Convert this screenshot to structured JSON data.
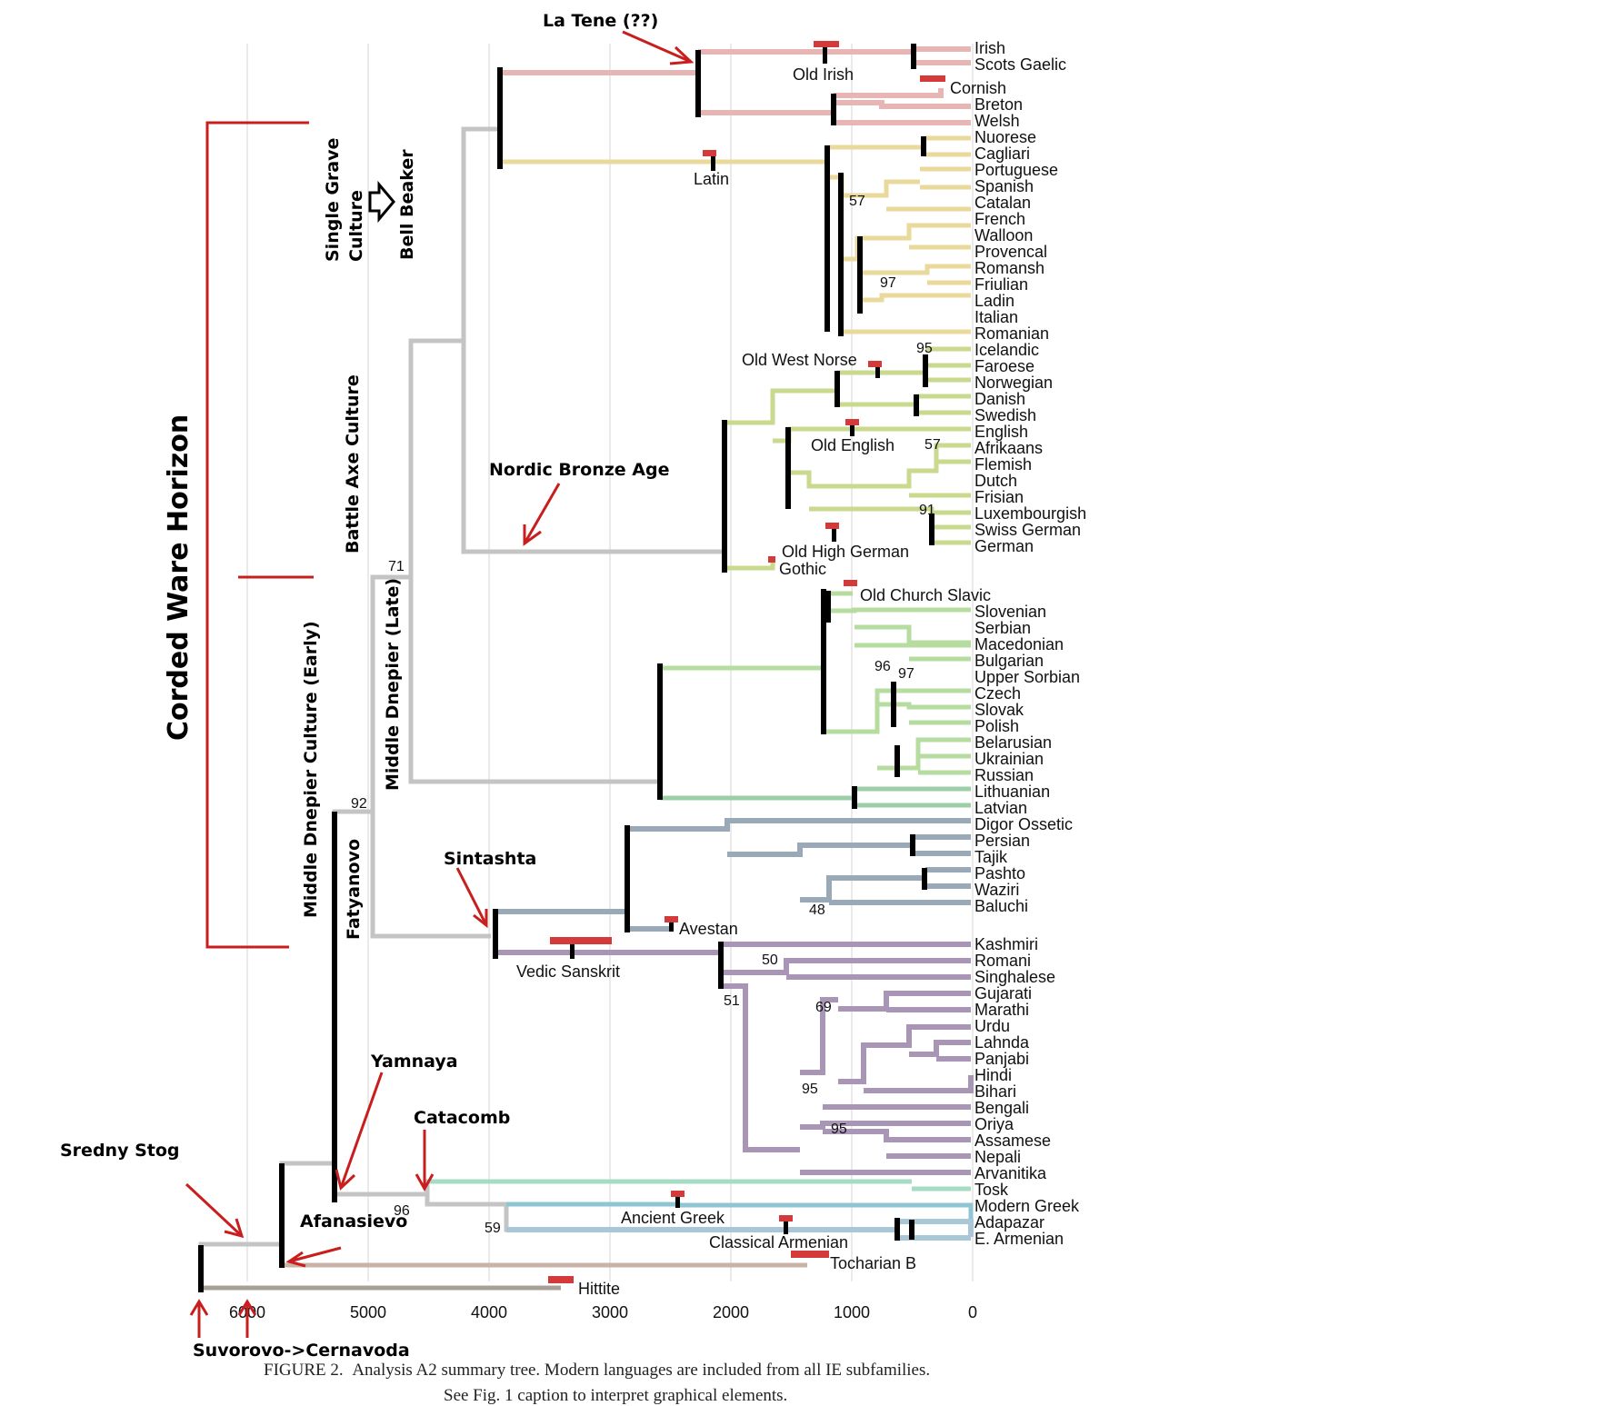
{
  "colors": {
    "celtic": "#e8b5b5",
    "italic": "#e9d99a",
    "germanic": "#c9d98e",
    "slavic": "#b7dca0",
    "baltic": "#9ccfa8",
    "iranian": "#9aa9b8",
    "indic": "#a996b6",
    "albanian": "#a6dcc6",
    "greek": "#8ec7d3",
    "armenian": "#a9c7d6",
    "tocharian": "#c9b3a8",
    "anatolian": "#a8a097",
    "backbone": "#c4c4c4",
    "node": "#000000",
    "sample": "#d43a3a",
    "annotation": "#c81e1e"
  },
  "languages": [
    "Irish",
    "Scots Gaelic",
    "Cornish",
    "Breton",
    "Welsh",
    "Nuorese",
    "Cagliari",
    "Portuguese",
    "Spanish",
    "Catalan",
    "French",
    "Walloon",
    "Provencal",
    "Romansh",
    "Friulian",
    "Ladin",
    "Italian",
    "Romanian",
    "Icelandic",
    "Faroese",
    "Norwegian",
    "Danish",
    "Swedish",
    "English",
    "Afrikaans",
    "Flemish",
    "Dutch",
    "Frisian",
    "Luxembourgish",
    "Swiss German",
    "German",
    "Slovenian",
    "Serbian",
    "Macedonian",
    "Bulgarian",
    "Upper Sorbian",
    "Czech",
    "Slovak",
    "Polish",
    "Belarusian",
    "Ukrainian",
    "Russian",
    "Lithuanian",
    "Latvian",
    "Digor Ossetic",
    "Persian",
    "Tajik",
    "Pashto",
    "Waziri",
    "Baluchi",
    "Kashmiri",
    "Romani",
    "Singhalese",
    "Gujarati",
    "Marathi",
    "Urdu",
    "Lahnda",
    "Panjabi",
    "Hindi",
    "Bihari",
    "Bengali",
    "Oriya",
    "Assamese",
    "Nepali",
    "Arvanitika",
    "Tosk",
    "Modern Greek",
    "Adapazar",
    "E. Armenian"
  ],
  "ancient": [
    "Old Irish",
    "Latin",
    "Old West Norse",
    "Old English",
    "Old High German",
    "Gothic",
    "Old Church Slavic",
    "Avestan",
    "Vedic Sanskrit",
    "Ancient Greek",
    "Classical Armenian",
    "Tocharian B",
    "Hittite"
  ],
  "support": [
    "57",
    "97",
    "95",
    "57",
    "91",
    "71",
    "92",
    "96",
    "97",
    "48",
    "50",
    "51",
    "69",
    "95",
    "95",
    "96",
    "59"
  ],
  "axis_ticks": [
    "6000",
    "5000",
    "4000",
    "3000",
    "2000",
    "1000",
    "0"
  ],
  "cultures": {
    "la_tene": "La Tene (??)",
    "nordic": "Nordic Bronze Age",
    "sintashta": "Sintashta",
    "yamnaya": "Yamnaya",
    "catacomb": "Catacomb",
    "sredny": "Sredny Stog",
    "afanasievo": "Afanasievo",
    "suvorovo": "Suvorovo->Cernavoda",
    "single_grave_1": "Single Grave",
    "single_grave_2": "Culture",
    "bell_beaker": "Bell Beaker",
    "battle_axe": "Battle Axe Culture",
    "mdc_early": "Middle Dnepier Culture (Early)",
    "md_late": "Middle Dnepier (Late)",
    "fatyanovo": "Fatyanovo",
    "horizon": "Corded Ware Horizon"
  },
  "caption": {
    "line1_label": "FIGURE 2.",
    "line1_text": "Analysis A2 summary tree. Modern languages are included from all IE subfamilies.",
    "line2": "See Fig. 1 caption to interpret graphical elements."
  }
}
